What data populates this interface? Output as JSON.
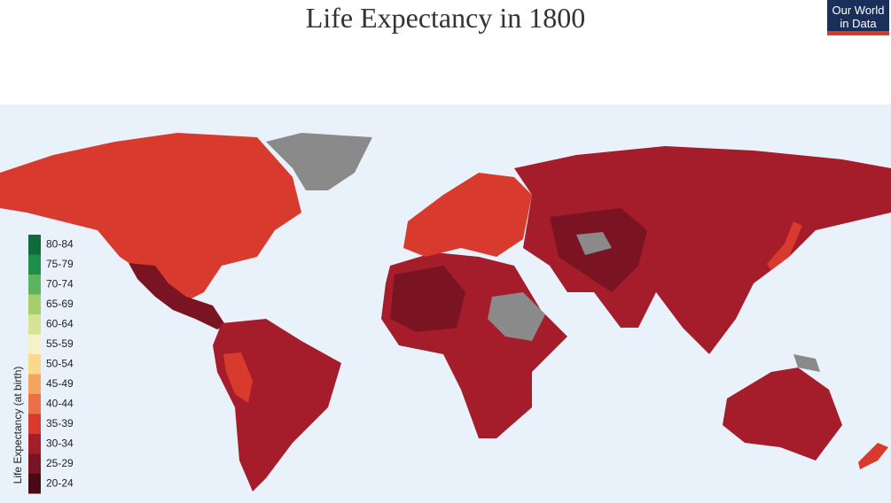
{
  "header": {
    "title": "Life Expectancy in 1800",
    "logo": [
      "Our World",
      "in Data"
    ]
  },
  "legend": {
    "title": "Life Expectancy (at birth)",
    "items": [
      {
        "label": "80-84",
        "color": "#0e6b3a"
      },
      {
        "label": "75-79",
        "color": "#1e8e4d"
      },
      {
        "label": "70-74",
        "color": "#5db35e"
      },
      {
        "label": "65-69",
        "color": "#a6cf6c"
      },
      {
        "label": "60-64",
        "color": "#d5e394"
      },
      {
        "label": "55-59",
        "color": "#f6f2c8"
      },
      {
        "label": "50-54",
        "color": "#fbd98b"
      },
      {
        "label": "45-49",
        "color": "#f5a55a"
      },
      {
        "label": "40-44",
        "color": "#ec6f47"
      },
      {
        "label": "35-39",
        "color": "#d93a2e"
      },
      {
        "label": "30-34",
        "color": "#a51c2b"
      },
      {
        "label": "25-29",
        "color": "#7a1423"
      },
      {
        "label": "20-24",
        "color": "#4a0a14"
      }
    ]
  }
}
